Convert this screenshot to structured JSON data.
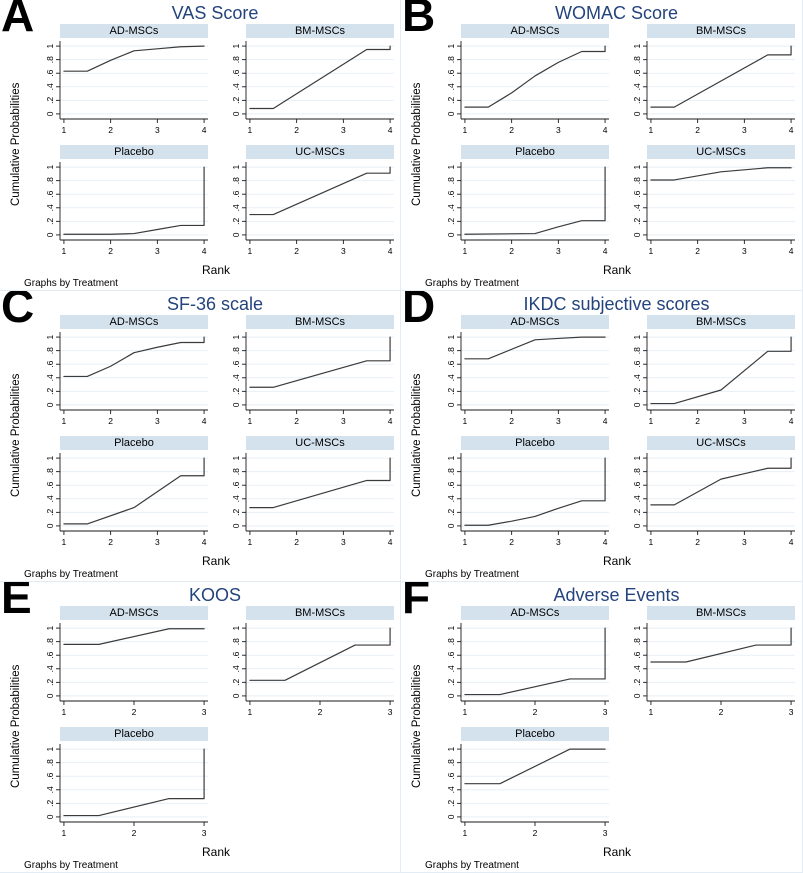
{
  "figure": {
    "ylabel": "Cumulative Probabilities",
    "xlabel": "Rank",
    "note": "Graphs by Treatment",
    "y_tick_labels": [
      "0",
      ".2",
      ".4",
      ".6",
      ".8",
      "1"
    ],
    "y_ticks": [
      0,
      0.2,
      0.4,
      0.6,
      0.8,
      1
    ],
    "colors": {
      "title": "#24447e",
      "band": "#d4e2ee",
      "grid": "#e7eff7",
      "line": "#3b3b3b",
      "axis": "#1a1a1a",
      "panel_border": "#e3ecf4",
      "letter": "#000000"
    }
  },
  "chart_data": [
    {
      "panel": "A",
      "title": "VAS Score",
      "type": "line",
      "xlabel": "Rank",
      "ylabel": "Cumulative Probabilities",
      "note": "Graphs by Treatment",
      "x_ticks": [
        1,
        2,
        3,
        4
      ],
      "ylim": [
        0,
        1
      ],
      "grid": "horizontal",
      "legend": "none",
      "series": [
        {
          "name": "AD-MSCs",
          "points": [
            [
              1,
              0.63
            ],
            [
              1.5,
              0.63
            ],
            [
              2,
              0.79
            ],
            [
              2.5,
              0.93
            ],
            [
              3,
              0.96
            ],
            [
              3.5,
              0.99
            ],
            [
              4,
              1
            ]
          ]
        },
        {
          "name": "BM-MSCs",
          "points": [
            [
              1,
              0.08
            ],
            [
              1.5,
              0.08
            ],
            [
              3.5,
              0.95
            ],
            [
              4,
              0.95
            ],
            [
              4,
              1
            ]
          ]
        },
        {
          "name": "Placebo",
          "points": [
            [
              1,
              0.01
            ],
            [
              2,
              0.01
            ],
            [
              2.5,
              0.02
            ],
            [
              3,
              0.08
            ],
            [
              3.5,
              0.14
            ],
            [
              4,
              0.14
            ],
            [
              4,
              1
            ]
          ]
        },
        {
          "name": "UC-MSCs",
          "points": [
            [
              1,
              0.3
            ],
            [
              1.5,
              0.3
            ],
            [
              3.5,
              0.91
            ],
            [
              4,
              0.91
            ],
            [
              4,
              1
            ]
          ]
        }
      ]
    },
    {
      "panel": "B",
      "title": "WOMAC Score",
      "type": "line",
      "xlabel": "Rank",
      "ylabel": "Cumulative Probabilities",
      "note": "Graphs by Treatment",
      "x_ticks": [
        1,
        2,
        3,
        4
      ],
      "ylim": [
        0,
        1
      ],
      "grid": "horizontal",
      "legend": "none",
      "series": [
        {
          "name": "AD-MSCs",
          "points": [
            [
              1,
              0.1
            ],
            [
              1.5,
              0.1
            ],
            [
              2,
              0.31
            ],
            [
              2.5,
              0.56
            ],
            [
              3,
              0.76
            ],
            [
              3.5,
              0.92
            ],
            [
              4,
              0.92
            ],
            [
              4,
              1
            ]
          ]
        },
        {
          "name": "BM-MSCs",
          "points": [
            [
              1,
              0.1
            ],
            [
              1.5,
              0.1
            ],
            [
              3.5,
              0.87
            ],
            [
              4,
              0.87
            ],
            [
              4,
              1
            ]
          ]
        },
        {
          "name": "Placebo",
          "points": [
            [
              1,
              0.01
            ],
            [
              2.5,
              0.02
            ],
            [
              3,
              0.12
            ],
            [
              3.5,
              0.21
            ],
            [
              4,
              0.21
            ],
            [
              4,
              1
            ]
          ]
        },
        {
          "name": "UC-MSCs",
          "points": [
            [
              1,
              0.81
            ],
            [
              1.5,
              0.81
            ],
            [
              2.5,
              0.93
            ],
            [
              3,
              0.96
            ],
            [
              3.5,
              0.99
            ],
            [
              4,
              0.99
            ]
          ]
        }
      ]
    },
    {
      "panel": "C",
      "title": "SF-36 scale",
      "type": "line",
      "xlabel": "Rank",
      "ylabel": "Cumulative Probabilities",
      "note": "Graphs by Treatment",
      "x_ticks": [
        1,
        2,
        3,
        4
      ],
      "ylim": [
        0,
        1
      ],
      "grid": "horizontal",
      "legend": "none",
      "series": [
        {
          "name": "AD-MSCs",
          "points": [
            [
              1,
              0.42
            ],
            [
              1.5,
              0.42
            ],
            [
              2,
              0.57
            ],
            [
              2.5,
              0.77
            ],
            [
              3,
              0.85
            ],
            [
              3.5,
              0.92
            ],
            [
              4,
              0.92
            ],
            [
              4,
              1
            ]
          ]
        },
        {
          "name": "BM-MSCs",
          "points": [
            [
              1,
              0.26
            ],
            [
              1.5,
              0.26
            ],
            [
              3.5,
              0.65
            ],
            [
              4,
              0.65
            ],
            [
              4,
              1
            ]
          ]
        },
        {
          "name": "Placebo",
          "points": [
            [
              1,
              0.03
            ],
            [
              1.5,
              0.03
            ],
            [
              2.5,
              0.27
            ],
            [
              3.5,
              0.74
            ],
            [
              4,
              0.74
            ],
            [
              4,
              1
            ]
          ]
        },
        {
          "name": "UC-MSCs",
          "points": [
            [
              1,
              0.27
            ],
            [
              1.5,
              0.27
            ],
            [
              3.5,
              0.67
            ],
            [
              4,
              0.67
            ],
            [
              4,
              1
            ]
          ]
        }
      ]
    },
    {
      "panel": "D",
      "title": "IKDC subjective scores",
      "type": "line",
      "xlabel": "Rank",
      "ylabel": "Cumulative Probabilities",
      "note": "Graphs by Treatment",
      "x_ticks": [
        1,
        2,
        3,
        4
      ],
      "ylim": [
        0,
        1
      ],
      "grid": "horizontal",
      "legend": "none",
      "series": [
        {
          "name": "AD-MSCs",
          "points": [
            [
              1,
              0.68
            ],
            [
              1.5,
              0.68
            ],
            [
              2.5,
              0.96
            ],
            [
              3,
              0.98
            ],
            [
              3.5,
              1
            ],
            [
              4,
              1
            ]
          ]
        },
        {
          "name": "BM-MSCs",
          "points": [
            [
              1,
              0.02
            ],
            [
              1.5,
              0.02
            ],
            [
              2.5,
              0.22
            ],
            [
              3.5,
              0.79
            ],
            [
              4,
              0.79
            ],
            [
              4,
              1
            ]
          ]
        },
        {
          "name": "Placebo",
          "points": [
            [
              1,
              0.01
            ],
            [
              1.5,
              0.01
            ],
            [
              2,
              0.07
            ],
            [
              2.5,
              0.14
            ],
            [
              3,
              0.26
            ],
            [
              3.5,
              0.37
            ],
            [
              4,
              0.37
            ],
            [
              4,
              1
            ]
          ]
        },
        {
          "name": "UC-MSCs",
          "points": [
            [
              1,
              0.31
            ],
            [
              1.5,
              0.31
            ],
            [
              2.5,
              0.69
            ],
            [
              3,
              0.77
            ],
            [
              3.5,
              0.85
            ],
            [
              4,
              0.85
            ],
            [
              4,
              1
            ]
          ]
        }
      ]
    },
    {
      "panel": "E",
      "title": "KOOS",
      "type": "line",
      "xlabel": "Rank",
      "ylabel": "Cumulative Probabilities",
      "note": "Graphs by Treatment",
      "x_ticks": [
        1,
        2,
        3
      ],
      "ylim": [
        0,
        1
      ],
      "grid": "horizontal",
      "legend": "none",
      "series": [
        {
          "name": "AD-MSCs",
          "points": [
            [
              1,
              0.76
            ],
            [
              1.5,
              0.76
            ],
            [
              2.5,
              0.99
            ],
            [
              3,
              0.99
            ]
          ]
        },
        {
          "name": "BM-MSCs",
          "points": [
            [
              1,
              0.23
            ],
            [
              1.5,
              0.23
            ],
            [
              2.5,
              0.75
            ],
            [
              3,
              0.75
            ],
            [
              3,
              1
            ]
          ]
        },
        {
          "name": "Placebo",
          "points": [
            [
              1,
              0.02
            ],
            [
              1.5,
              0.02
            ],
            [
              2.5,
              0.27
            ],
            [
              3,
              0.27
            ],
            [
              3,
              1
            ]
          ]
        }
      ]
    },
    {
      "panel": "F",
      "title": "Adverse Events",
      "type": "line",
      "xlabel": "Rank",
      "ylabel": "Cumulative Probabilities",
      "note": "Graphs by Treatment",
      "x_ticks": [
        1,
        2,
        3
      ],
      "ylim": [
        0,
        1
      ],
      "grid": "horizontal",
      "legend": "none",
      "series": [
        {
          "name": "AD-MSCs",
          "points": [
            [
              1,
              0.02
            ],
            [
              1.5,
              0.02
            ],
            [
              2.5,
              0.25
            ],
            [
              3,
              0.25
            ],
            [
              3,
              1
            ]
          ]
        },
        {
          "name": "BM-MSCs",
          "points": [
            [
              1,
              0.5
            ],
            [
              1.5,
              0.5
            ],
            [
              2.5,
              0.75
            ],
            [
              3,
              0.75
            ],
            [
              3,
              1
            ]
          ]
        },
        {
          "name": "Placebo",
          "points": [
            [
              1,
              0.49
            ],
            [
              1.5,
              0.49
            ],
            [
              2.5,
              1
            ],
            [
              3,
              1
            ]
          ]
        }
      ]
    }
  ]
}
